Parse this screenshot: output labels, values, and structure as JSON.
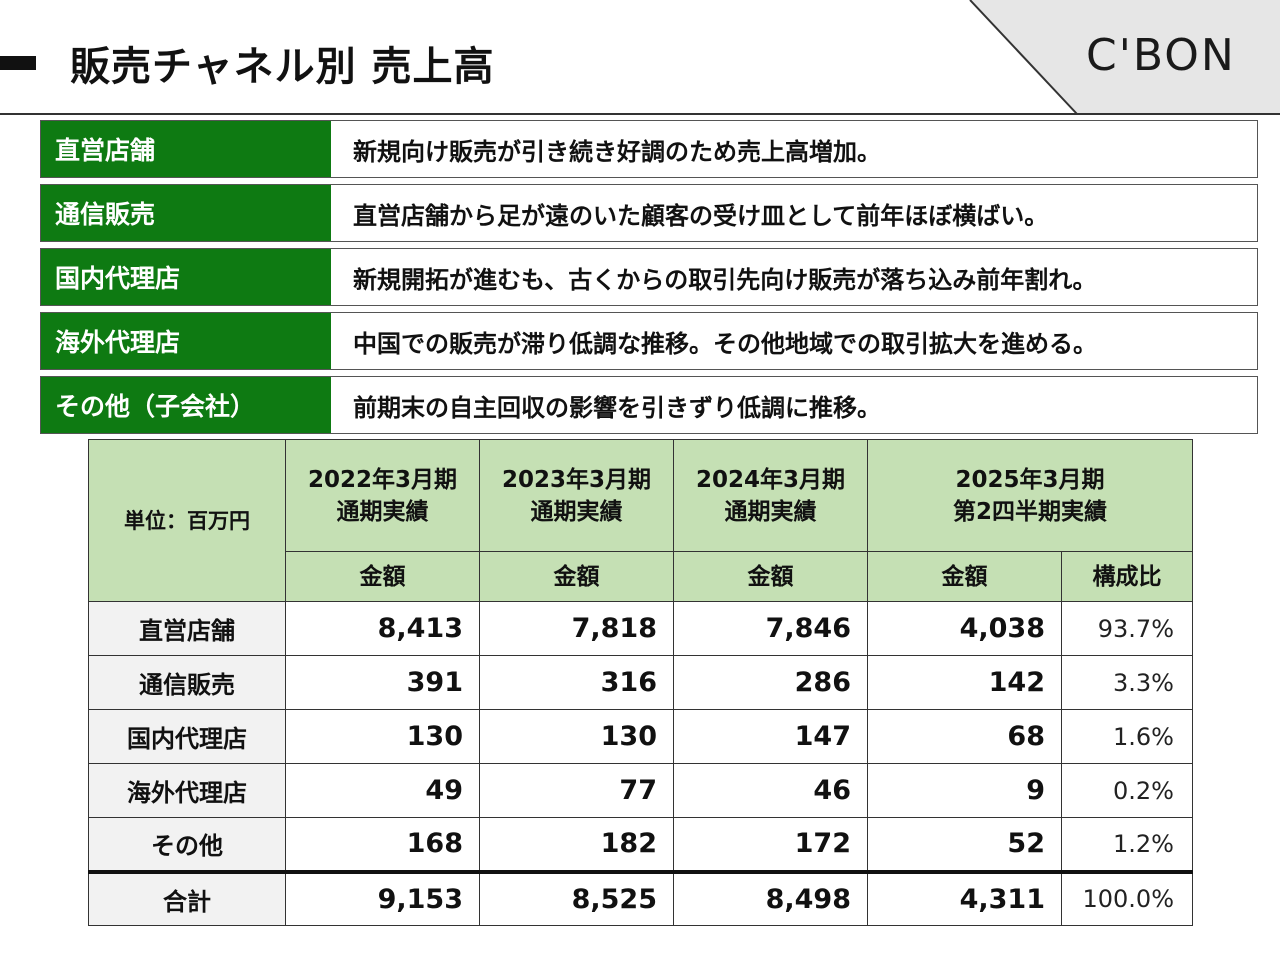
{
  "header": {
    "title": "販売チャネル別 売上高",
    "logo": "C'BON"
  },
  "channels": [
    {
      "label": "直営店舗",
      "text": "新規向け販売が引き続き好調のため売上高増加。"
    },
    {
      "label": "通信販売",
      "text": "直営店舗から足が遠のいた顧客の受け皿として前年ほぼ横ばい。"
    },
    {
      "label": "国内代理店",
      "text": "新規開拓が進むも、古くからの取引先向け販売が落ち込み前年割れ。"
    },
    {
      "label": "海外代理店",
      "text": "中国での販売が滞り低調な推移。その他地域での取引拡大を進める。"
    },
    {
      "label": "その他（子会社）",
      "text": "前期末の自主回収の影響を引きずり低調に推移。"
    }
  ],
  "table": {
    "unit": "単位：百万円",
    "periods": [
      {
        "line1": "2022年3月期",
        "line2": "通期実績"
      },
      {
        "line1": "2023年3月期",
        "line2": "通期実績"
      },
      {
        "line1": "2024年3月期",
        "line2": "通期実績"
      },
      {
        "line1": "2025年3月期",
        "line2": "第2四半期実績"
      }
    ],
    "amount_label": "金額",
    "ratio_label": "構成比",
    "rows": [
      {
        "label": "直営店舗",
        "v1": "8,413",
        "v2": "7,818",
        "v3": "7,846",
        "v4": "4,038",
        "ratio": "93.7%"
      },
      {
        "label": "通信販売",
        "v1": "391",
        "v2": "316",
        "v3": "286",
        "v4": "142",
        "ratio": "3.3%"
      },
      {
        "label": "国内代理店",
        "v1": "130",
        "v2": "130",
        "v3": "147",
        "v4": "68",
        "ratio": "1.6%"
      },
      {
        "label": "海外代理店",
        "v1": "49",
        "v2": "77",
        "v3": "46",
        "v4": "9",
        "ratio": "0.2%"
      },
      {
        "label": "その他",
        "v1": "168",
        "v2": "182",
        "v3": "172",
        "v4": "52",
        "ratio": "1.2%"
      },
      {
        "label": "合計",
        "v1": "9,153",
        "v2": "8,525",
        "v3": "8,498",
        "v4": "4,311",
        "ratio": "100.0%"
      }
    ]
  },
  "colors": {
    "label_green": "#0e7a12",
    "header_green": "#c5e0b4",
    "logo_panel": "#e6e6e6"
  }
}
